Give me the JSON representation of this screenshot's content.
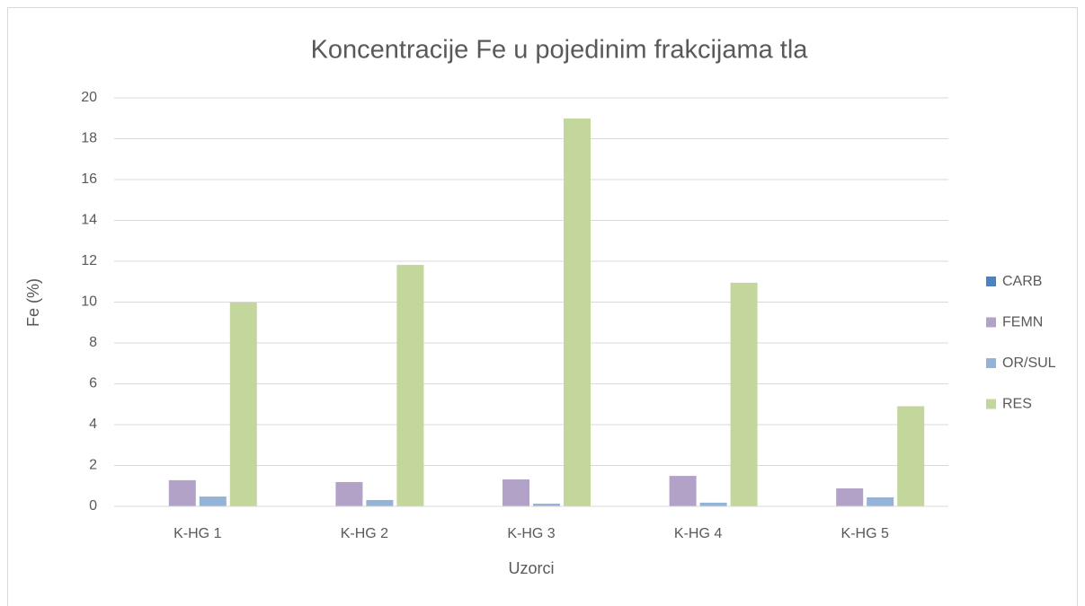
{
  "chart_data": {
    "type": "bar",
    "title": "Koncentracije Fe u pojedinim frakcijama tla",
    "x_label": "Uzorci",
    "y_label": "Fe (%)",
    "categories": [
      "K-HG 1",
      "K-HG 2",
      "K-HG 3",
      "K-HG 4",
      "K-HG 5"
    ],
    "series": [
      {
        "name": "CARB",
        "color": "#4f81bd",
        "values": [
          0,
          0,
          0,
          0,
          0
        ]
      },
      {
        "name": "FEMN",
        "color": "#b3a2c7",
        "values": [
          1.28,
          1.19,
          1.32,
          1.49,
          0.88
        ]
      },
      {
        "name": "OR/SUL",
        "color": "#95b3d7",
        "values": [
          0.48,
          0.31,
          0.13,
          0.18,
          0.44
        ]
      },
      {
        "name": "RES",
        "color": "#c3d69b",
        "values": [
          9.98,
          11.82,
          18.99,
          10.95,
          4.9
        ]
      }
    ],
    "ylim": [
      0,
      20
    ],
    "yticks": [
      0,
      2,
      4,
      6,
      8,
      10,
      12,
      14,
      16,
      18,
      20
    ],
    "grid": true,
    "legend": "right"
  }
}
